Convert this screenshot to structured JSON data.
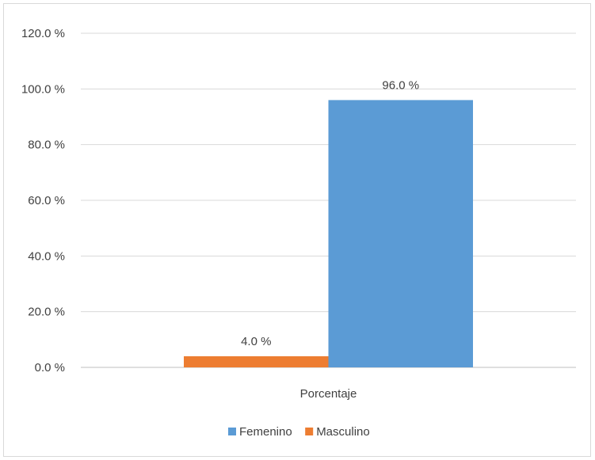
{
  "chart_data": {
    "type": "bar",
    "categories": [
      "Porcentaje"
    ],
    "series": [
      {
        "name": "Masculino",
        "values": [
          4.0
        ],
        "color": "#ED7D31",
        "label": "4.0 %"
      },
      {
        "name": "Femenino",
        "values": [
          96.0
        ],
        "color": "#5B9BD5",
        "label": "96.0 %"
      }
    ],
    "yticks": [
      "0.0 %",
      "20.0 %",
      "40.0 %",
      "60.0 %",
      "80.0 %",
      "100.0 %",
      "120.0 %"
    ],
    "ylim": [
      0,
      120
    ],
    "grid": true,
    "legend": {
      "position": "bottom",
      "entries": [
        {
          "name": "Femenino",
          "color": "#5B9BD5"
        },
        {
          "name": "Masculino",
          "color": "#ED7D31"
        }
      ]
    },
    "title": "",
    "xlabel": "",
    "ylabel": ""
  }
}
